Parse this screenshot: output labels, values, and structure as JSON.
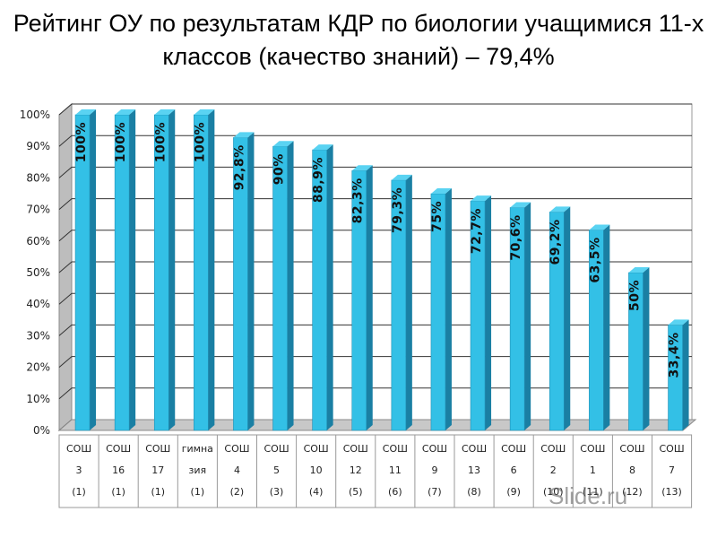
{
  "chart_data": {
    "type": "bar",
    "title": "Рейтинг ОУ по результатам КДР по биологии учащимися 11-х классов (качество знаний) – 79,4%",
    "categories": [
      [
        "СОШ",
        "3",
        "(1)"
      ],
      [
        "СОШ",
        "16",
        "(1)"
      ],
      [
        "СОШ",
        "17",
        "(1)"
      ],
      [
        "гимна",
        "зия",
        "(1)"
      ],
      [
        "СОШ",
        "4",
        "(2)"
      ],
      [
        "СОШ",
        "5",
        "(3)"
      ],
      [
        "СОШ",
        "10",
        "(4)"
      ],
      [
        "СОШ",
        "12",
        "(5)"
      ],
      [
        "СОШ",
        "11",
        "(6)"
      ],
      [
        "СОШ",
        "9",
        "(7)"
      ],
      [
        "СОШ",
        "13",
        "(8)"
      ],
      [
        "СОШ",
        "6",
        "(9)"
      ],
      [
        "СОШ",
        "2",
        "(10)"
      ],
      [
        "СОШ",
        "1",
        "(11)"
      ],
      [
        "СОШ",
        "8",
        "(12)"
      ],
      [
        "СОШ",
        "7",
        "(13)"
      ]
    ],
    "values": [
      100,
      100,
      100,
      100,
      92.8,
      90,
      88.9,
      82.3,
      79.3,
      75,
      72.7,
      70.6,
      69.2,
      63.5,
      50,
      33.4
    ],
    "data_labels": [
      "100%",
      "100%",
      "100%",
      "100%",
      "92,8%",
      "90%",
      "88,9%",
      "82,3%",
      "79,3%",
      "75%",
      "72,7%",
      "70,6%",
      "69,2%",
      "63,5%",
      "50%",
      "33,4%"
    ],
    "ylim": [
      0,
      100
    ],
    "yticks": [
      "0%",
      "10%",
      "20%",
      "30%",
      "40%",
      "50%",
      "60%",
      "70%",
      "80%",
      "90%",
      "100%"
    ],
    "grid": true,
    "colors": {
      "bar_front": "#33C0E6",
      "bar_side": "#1A7FA3",
      "bar_top": "#5AD3F2"
    }
  },
  "watermark": "Slide.ru"
}
